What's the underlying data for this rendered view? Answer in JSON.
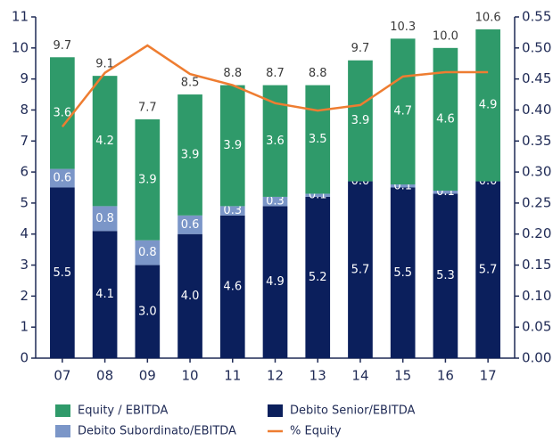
{
  "chart_data": {
    "type": "stacked_bar_line",
    "categories": [
      "07",
      "08",
      "09",
      "10",
      "11",
      "12",
      "13",
      "14",
      "15",
      "16",
      "17"
    ],
    "series": [
      {
        "name": "Debito Senior/EBITDA",
        "color": "#0b1f5c",
        "values": [
          5.5,
          4.1,
          3.0,
          4.0,
          4.6,
          4.9,
          5.2,
          5.7,
          5.5,
          5.3,
          5.7
        ],
        "value_labels": [
          "5.5",
          "4.1",
          "3.0",
          "4.0",
          "4.6",
          "4.9",
          "5.2",
          "5.7",
          "5.5",
          "5.3",
          "5.7"
        ]
      },
      {
        "name": "Debito Subordinato/EBITDA",
        "color": "#7b96c8",
        "values": [
          0.6,
          0.8,
          0.8,
          0.6,
          0.3,
          0.3,
          0.1,
          0.0,
          0.1,
          0.1,
          0.0
        ],
        "value_labels": [
          "0.6",
          "0.8",
          "0.8",
          "0.6",
          "0.3",
          "0.3",
          "0.1",
          "0.0",
          "0.1",
          "0.1",
          "0.0"
        ]
      },
      {
        "name": "Equity / EBITDA",
        "color": "#2f9a6a",
        "values": [
          3.6,
          4.2,
          3.9,
          3.9,
          3.9,
          3.6,
          3.5,
          3.9,
          4.7,
          4.6,
          4.9
        ],
        "value_labels": [
          "3.6",
          "4.2",
          "3.9",
          "3.9",
          "3.9",
          "3.6",
          "3.5",
          "3.9",
          "4.7",
          "4.6",
          "4.9"
        ]
      },
      {
        "name": "% Equity",
        "color": "#ee7d31",
        "axis": "y2",
        "line": true,
        "values": [
          0.373,
          0.46,
          0.504,
          0.458,
          0.44,
          0.411,
          0.399,
          0.408,
          0.454,
          0.461,
          0.461
        ]
      }
    ],
    "totals": {
      "values": [
        9.7,
        9.1,
        7.7,
        8.5,
        8.8,
        8.7,
        8.8,
        9.7,
        10.3,
        10.0,
        10.6
      ],
      "value_labels": [
        "9.7",
        "9.1",
        "7.7",
        "8.5",
        "8.8",
        "8.7",
        "8.8",
        "9.7",
        "10.3",
        "10.0",
        "10.6"
      ]
    },
    "ylim": [
      0,
      11
    ],
    "yticks": [
      0,
      1,
      2,
      3,
      4,
      5,
      6,
      7,
      8,
      9,
      10,
      11
    ],
    "y2lim": [
      0,
      0.55
    ],
    "y2ticks": [
      {
        "value": 0,
        "label": "0.00"
      },
      {
        "value": 0.05,
        "label": "0.05"
      },
      {
        "value": 0.1,
        "label": "0.10"
      },
      {
        "value": 0.15,
        "label": "0.15"
      },
      {
        "value": 0.2,
        "label": "0.20"
      },
      {
        "value": 0.25,
        "label": "0.25"
      },
      {
        "value": 0.3,
        "label": "0.30"
      },
      {
        "value": 0.35,
        "label": "0.35"
      },
      {
        "value": 0.4,
        "label": "0.40"
      },
      {
        "value": 0.45,
        "label": "0.45"
      },
      {
        "value": 0.5,
        "label": "0.50"
      },
      {
        "value": 0.55,
        "label": "0.55"
      }
    ],
    "legend": "bottom"
  }
}
